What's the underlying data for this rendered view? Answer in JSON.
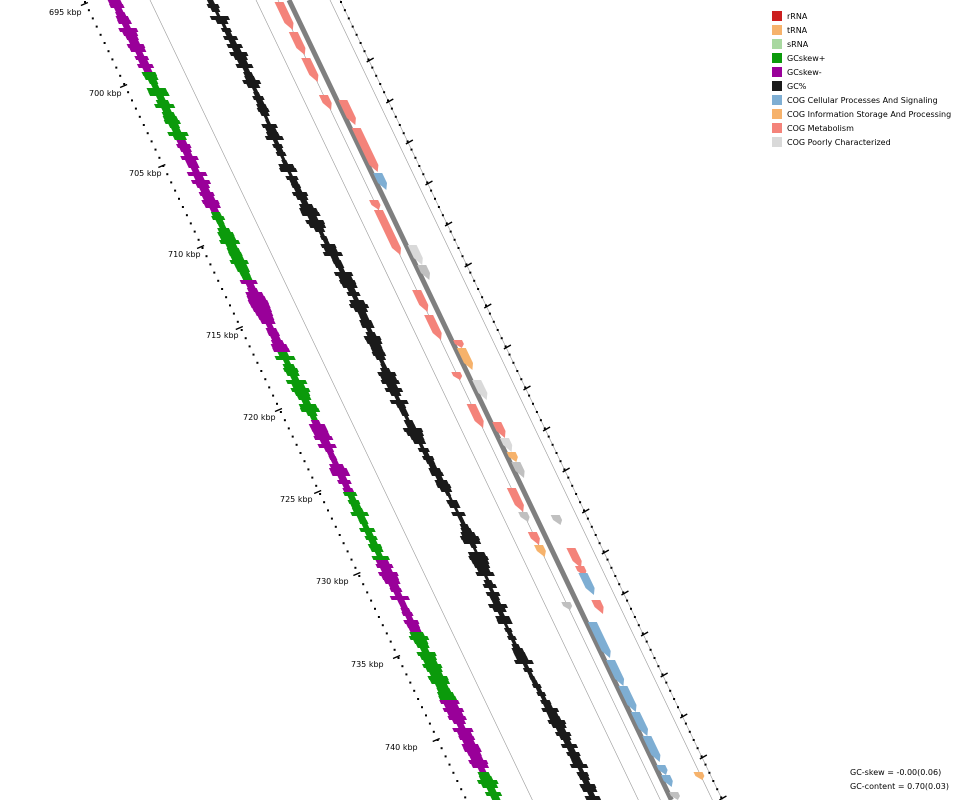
{
  "legend": [
    {
      "label": "rRNA",
      "color": "#cc1f1f"
    },
    {
      "label": "tRNA",
      "color": "#f6b26b"
    },
    {
      "label": "sRNA",
      "color": "#a8d8a0"
    },
    {
      "label": "GCskew+",
      "color": "#0b9a0b"
    },
    {
      "label": "GCskew-",
      "color": "#990099"
    },
    {
      "label": "GC%",
      "color": "#1a1a1a"
    },
    {
      "label": "COG Cellular Processes And Signaling",
      "color": "#7eaed3"
    },
    {
      "label": "COG Information Storage And Processing",
      "color": "#f6b26b"
    },
    {
      "label": "COG Metabolism",
      "color": "#f4837a"
    },
    {
      "label": "COG Poorly Characterized",
      "color": "#d9d9d9"
    }
  ],
  "ruler_labels": [
    "695 kbp",
    "700 kbp",
    "705 kbp",
    "710 kbp",
    "715 kbp",
    "720 kbp",
    "725 kbp",
    "730 kbp",
    "735 kbp",
    "740 kbp"
  ],
  "stats": {
    "gc_skew": "GC-skew = -0.00(0.06)",
    "gc_content": "GC-content = 0.70(0.03)"
  }
}
